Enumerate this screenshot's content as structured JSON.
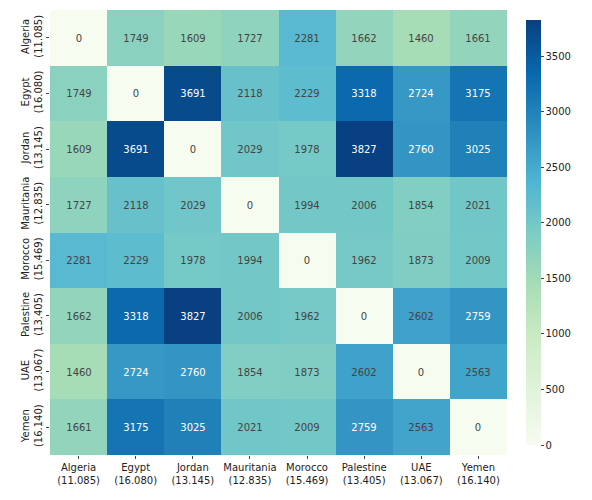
{
  "chart_data": {
    "type": "heatmap",
    "x_categories": [
      "Algeria\n(11.085)",
      "Egypt\n(16.080)",
      "Jordan\n(13.145)",
      "Mauritania\n(12.835)",
      "Morocco\n(15.469)",
      "Palestine\n(13.405)",
      "UAE\n(13.067)",
      "Yemen\n(16.140)"
    ],
    "y_categories": [
      "Algeria\n(11.085)",
      "Egypt\n(16.080)",
      "Jordan\n(13.145)",
      "Mauritania\n(12.835)",
      "Morocco\n(15.469)",
      "Palestine\n(13.405)",
      "UAE\n(13.067)",
      "Yemen\n(16.140)"
    ],
    "cells": [
      [
        0,
        1749,
        1609,
        1727,
        2281,
        1662,
        1460,
        1661
      ],
      [
        1749,
        0,
        3691,
        2118,
        2229,
        3318,
        2724,
        3175
      ],
      [
        1609,
        3691,
        0,
        2029,
        1978,
        3827,
        2760,
        3025
      ],
      [
        1727,
        2118,
        2029,
        0,
        1994,
        2006,
        1854,
        2021
      ],
      [
        2281,
        2229,
        1978,
        1994,
        0,
        1962,
        1873,
        2009
      ],
      [
        1662,
        3318,
        3827,
        2006,
        1962,
        0,
        2602,
        2759
      ],
      [
        1460,
        2724,
        2760,
        1854,
        1873,
        2602,
        0,
        2563
      ],
      [
        1661,
        3175,
        3025,
        2021,
        2009,
        2759,
        2563,
        0
      ]
    ],
    "data_labels": true,
    "colorbar": {
      "range": [
        0,
        3827
      ],
      "ticks": [
        0,
        500,
        1000,
        1500,
        2000,
        2500,
        3000,
        3500
      ]
    }
  }
}
